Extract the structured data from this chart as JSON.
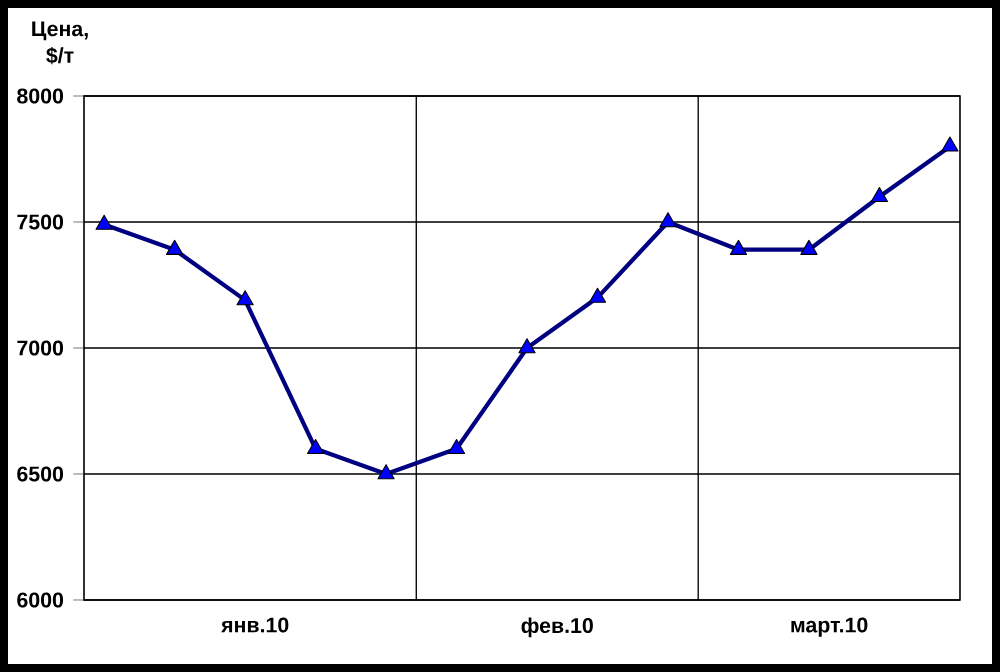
{
  "chart_data": {
    "type": "line",
    "ylabel": "Цена, $/т",
    "x": [
      "2010-01-01",
      "2010-01-08",
      "2010-01-15",
      "2010-01-22",
      "2010-01-29",
      "2010-02-05",
      "2010-02-12",
      "2010-02-19",
      "2010-02-26",
      "2010-03-05",
      "2010-03-12",
      "2010-03-19",
      "2010-03-26"
    ],
    "series": [
      {
        "color": "#000080",
        "values": [
          7490,
          7390,
          7190,
          6600,
          6500,
          6600,
          7000,
          7200,
          7500,
          7390,
          7390,
          7600,
          7800
        ]
      }
    ],
    "xlim": [
      "2009-12-30",
      "2010-03-27"
    ],
    "xticks": [
      {
        "value": "2010-02-01",
        "label": null
      },
      {
        "value": "2010-03-01",
        "label": null
      },
      {
        "value": "2010-01-16",
        "label": "янв.10"
      },
      {
        "value": "2010-02-15",
        "label": "фев.10"
      },
      {
        "value": "2010-03-14",
        "label": "март.10"
      }
    ],
    "ylim": [
      6000,
      8000
    ],
    "yticks": [
      6000,
      6500,
      7000,
      7500,
      8000
    ],
    "grid": true,
    "marker": "triangle",
    "line_style": "solid"
  }
}
